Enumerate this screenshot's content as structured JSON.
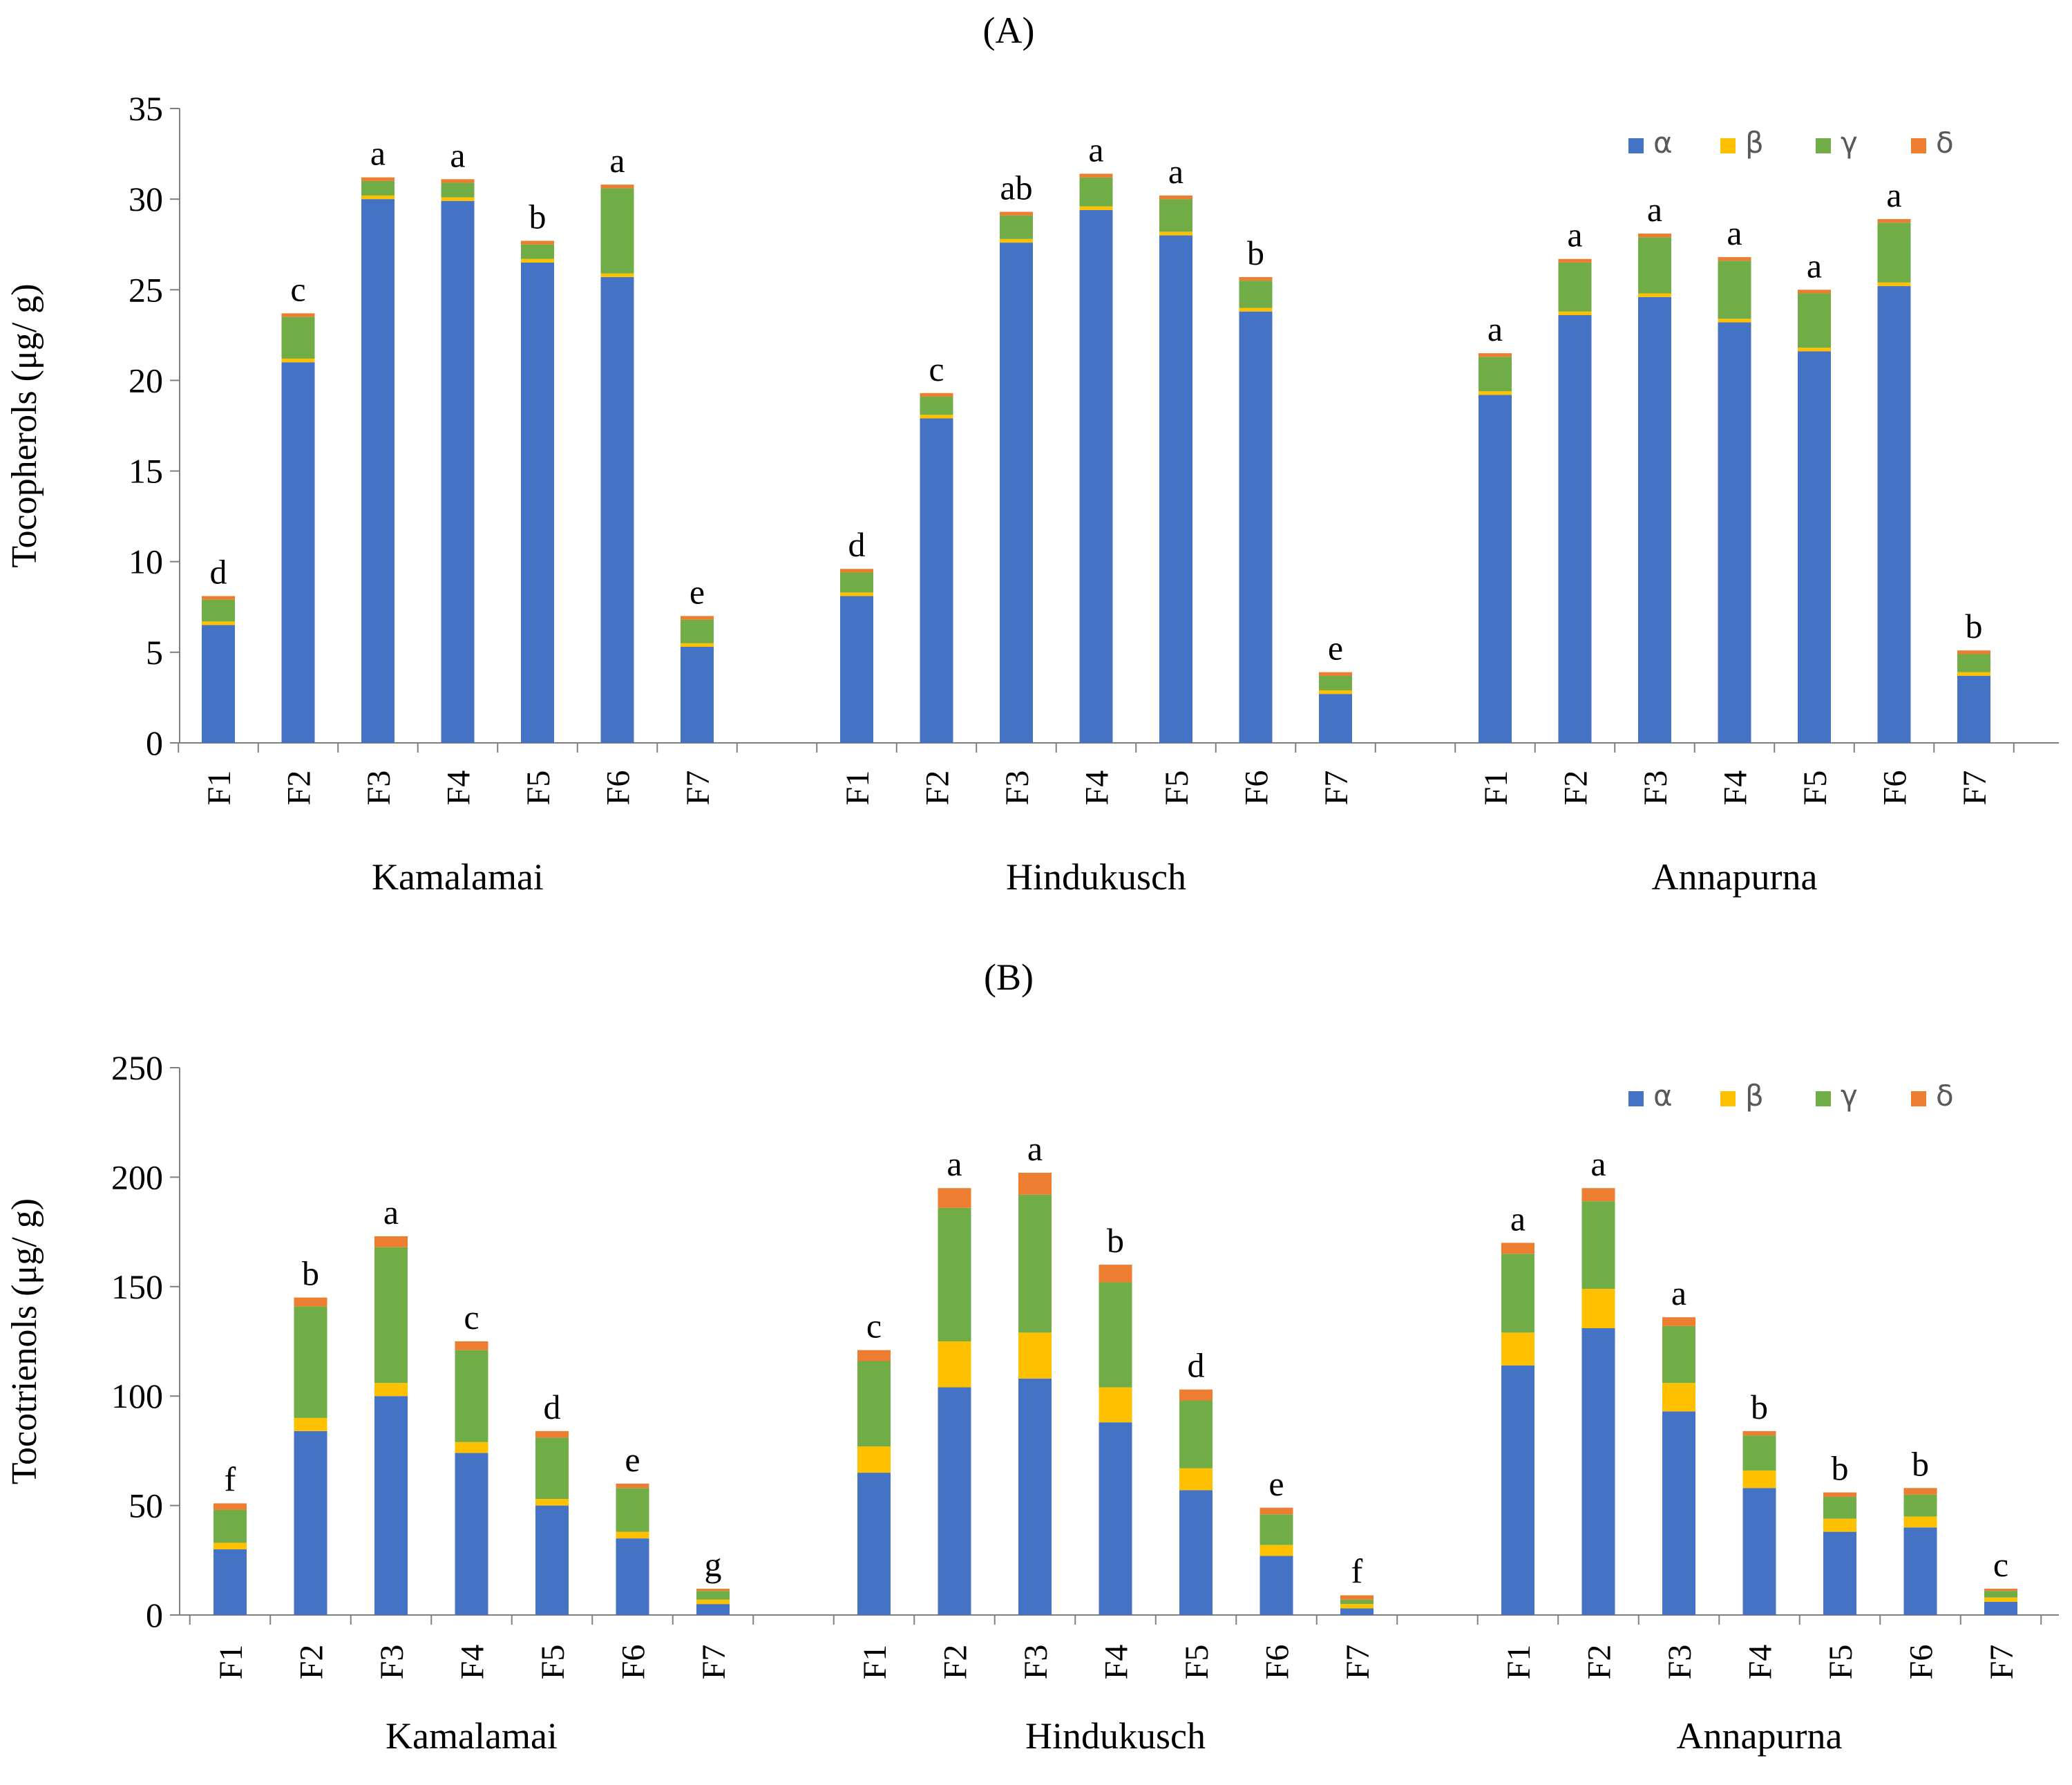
{
  "chart_data": [
    {
      "type": "bar",
      "stacked": true,
      "panel_label": "A",
      "title": "(A)",
      "ylabel": "Tocopherols (μg/ g)",
      "ylim": [
        0,
        35
      ],
      "yticks": [
        0,
        5,
        10,
        15,
        20,
        25,
        30,
        35
      ],
      "grid": false,
      "legend_position": "top-right",
      "groups": [
        {
          "name": "Kamalamai",
          "categories": [
            "F1",
            "F2",
            "F3",
            "F4",
            "F5",
            "F6",
            "F7"
          ],
          "series": [
            {
              "name": "α",
              "values": [
                6.5,
                21.0,
                30.0,
                29.9,
                26.5,
                25.7,
                5.3
              ]
            },
            {
              "name": "β",
              "values": [
                0.2,
                0.2,
                0.2,
                0.2,
                0.2,
                0.2,
                0.2
              ]
            },
            {
              "name": "γ",
              "values": [
                1.2,
                2.3,
                0.8,
                0.8,
                0.8,
                4.7,
                1.3
              ]
            },
            {
              "name": "δ",
              "values": [
                0.2,
                0.2,
                0.2,
                0.2,
                0.2,
                0.2,
                0.2
              ]
            }
          ],
          "letters": [
            "d",
            "c",
            "a",
            "a",
            "b",
            "a",
            "e"
          ]
        },
        {
          "name": "Hindukusch",
          "categories": [
            "F1",
            "F2",
            "F3",
            "F4",
            "F5",
            "F6",
            "F7"
          ],
          "series": [
            {
              "name": "α",
              "values": [
                8.1,
                17.9,
                27.6,
                29.4,
                28.0,
                23.8,
                2.7
              ]
            },
            {
              "name": "β",
              "values": [
                0.2,
                0.2,
                0.2,
                0.2,
                0.2,
                0.2,
                0.2
              ]
            },
            {
              "name": "γ",
              "values": [
                1.1,
                1.0,
                1.3,
                1.6,
                1.8,
                1.5,
                0.8
              ]
            },
            {
              "name": "δ",
              "values": [
                0.2,
                0.2,
                0.2,
                0.2,
                0.2,
                0.2,
                0.2
              ]
            }
          ],
          "letters": [
            "d",
            "c",
            "ab",
            "a",
            "a",
            "b",
            "e"
          ]
        },
        {
          "name": "Annapurna",
          "categories": [
            "F1",
            "F2",
            "F3",
            "F4",
            "F5",
            "F6",
            "F7"
          ],
          "series": [
            {
              "name": "α",
              "values": [
                19.2,
                23.6,
                24.6,
                23.2,
                21.6,
                25.2,
                3.7
              ]
            },
            {
              "name": "β",
              "values": [
                0.2,
                0.2,
                0.2,
                0.2,
                0.2,
                0.2,
                0.2
              ]
            },
            {
              "name": "γ",
              "values": [
                1.9,
                2.7,
                3.1,
                3.2,
                3.0,
                3.3,
                1.0
              ]
            },
            {
              "name": "δ",
              "values": [
                0.2,
                0.2,
                0.2,
                0.2,
                0.2,
                0.2,
                0.2
              ]
            }
          ],
          "letters": [
            "a",
            "a",
            "a",
            "a",
            "a",
            "a",
            "b"
          ]
        }
      ]
    },
    {
      "type": "bar",
      "stacked": true,
      "panel_label": "B",
      "title": "(B)",
      "ylabel": "Tocotrienols (μg/ g)",
      "ylim": [
        0,
        250
      ],
      "yticks": [
        0,
        50,
        100,
        150,
        200,
        250
      ],
      "grid": false,
      "legend_position": "top-right",
      "groups": [
        {
          "name": "Kamalamai",
          "categories": [
            "F1",
            "F2",
            "F3",
            "F4",
            "F5",
            "F6",
            "F7"
          ],
          "series": [
            {
              "name": "α",
              "values": [
                30,
                84,
                100,
                74,
                50,
                35,
                5
              ]
            },
            {
              "name": "β",
              "values": [
                3,
                6,
                6,
                5,
                3,
                3,
                2
              ]
            },
            {
              "name": "γ",
              "values": [
                15,
                51,
                62,
                42,
                28,
                20,
                4
              ]
            },
            {
              "name": "δ",
              "values": [
                3,
                4,
                5,
                4,
                3,
                2,
                1
              ]
            }
          ],
          "letters": [
            "f",
            "b",
            "a",
            "c",
            "d",
            "e",
            "g"
          ]
        },
        {
          "name": "Hindukusch",
          "categories": [
            "F1",
            "F2",
            "F3",
            "F4",
            "F5",
            "F6",
            "F7"
          ],
          "series": [
            {
              "name": "α",
              "values": [
                65,
                104,
                108,
                88,
                57,
                27,
                3
              ]
            },
            {
              "name": "β",
              "values": [
                12,
                21,
                21,
                16,
                10,
                5,
                2
              ]
            },
            {
              "name": "γ",
              "values": [
                39,
                61,
                63,
                48,
                31,
                14,
                2
              ]
            },
            {
              "name": "δ",
              "values": [
                5,
                9,
                10,
                8,
                5,
                3,
                2
              ]
            }
          ],
          "letters": [
            "c",
            "a",
            "a",
            "b",
            "d",
            "e",
            "f"
          ]
        },
        {
          "name": "Annapurna",
          "categories": [
            "F1",
            "F2",
            "F3",
            "F4",
            "F5",
            "F6",
            "F7"
          ],
          "series": [
            {
              "name": "α",
              "values": [
                114,
                131,
                93,
                58,
                38,
                40,
                6
              ]
            },
            {
              "name": "β",
              "values": [
                15,
                18,
                13,
                8,
                6,
                5,
                2
              ]
            },
            {
              "name": "γ",
              "values": [
                36,
                40,
                26,
                16,
                10,
                10,
                3
              ]
            },
            {
              "name": "δ",
              "values": [
                5,
                6,
                4,
                2,
                2,
                3,
                1
              ]
            }
          ],
          "letters": [
            "a",
            "a",
            "a",
            "b",
            "b",
            "b",
            "c"
          ]
        }
      ]
    }
  ],
  "colors": {
    "α": "#4472C4",
    "β": "#FFC000",
    "γ": "#70AD47",
    "δ": "#ED7D31"
  },
  "legend": [
    "α",
    "β",
    "γ",
    "δ"
  ]
}
